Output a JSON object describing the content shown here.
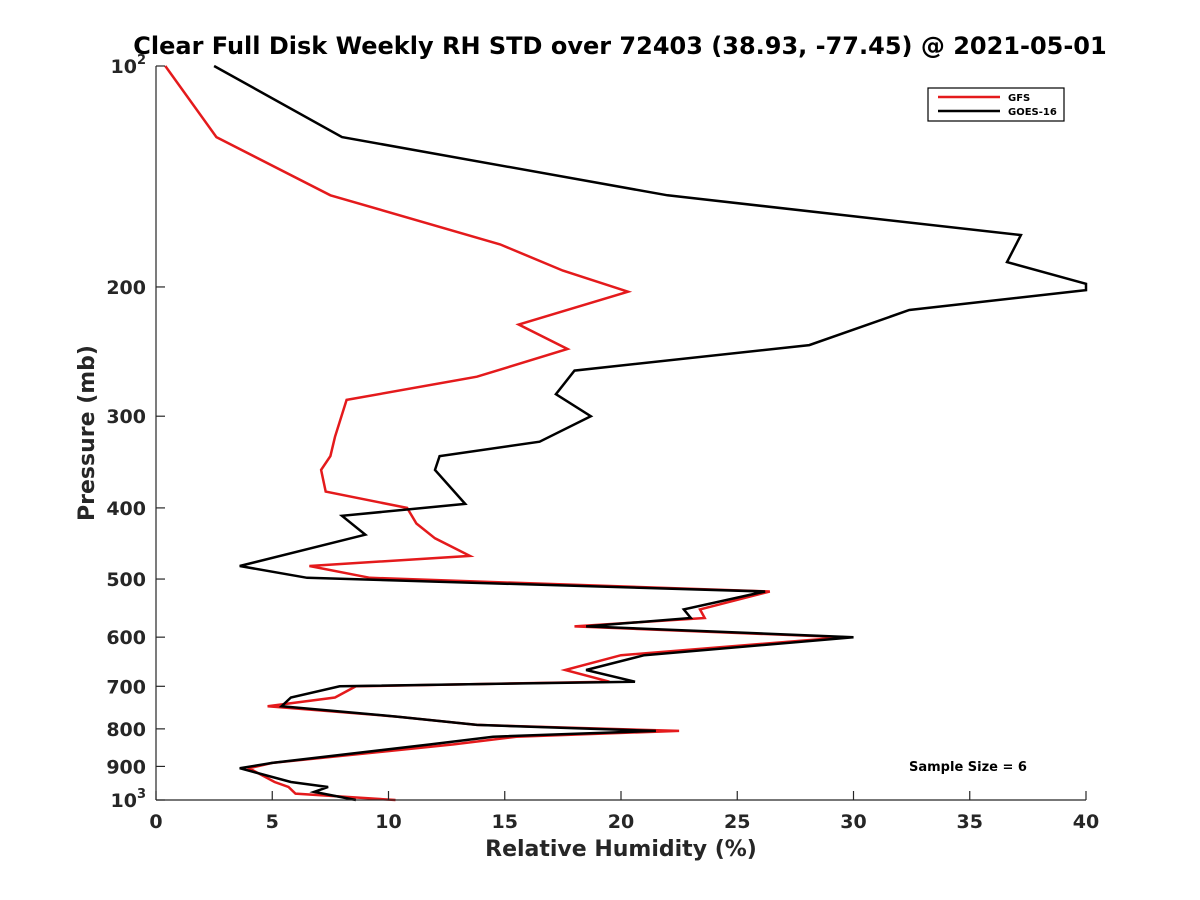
{
  "chart_data": {
    "type": "line",
    "title": "Clear Full Disk Weekly RH STD over 72403 (38.93, -77.45) @ 2021-05-01",
    "xlabel": "Relative Humidity (%)",
    "ylabel": "Pressure (mb)",
    "xlim": [
      0,
      40
    ],
    "ylim": [
      100,
      1000
    ],
    "y_scale": "log",
    "y_reversed": true,
    "x_ticks": [
      "0",
      "5",
      "10",
      "15",
      "20",
      "25",
      "30",
      "35",
      "40"
    ],
    "y_tick_values": [
      100,
      200,
      300,
      400,
      500,
      600,
      700,
      800,
      900,
      1000
    ],
    "y_tick_labels": [
      {
        "base": "10",
        "exp": "2"
      },
      {
        "base": "200",
        "exp": ""
      },
      {
        "base": "300",
        "exp": ""
      },
      {
        "base": "400",
        "exp": ""
      },
      {
        "base": "500",
        "exp": ""
      },
      {
        "base": "600",
        "exp": ""
      },
      {
        "base": "700",
        "exp": ""
      },
      {
        "base": "800",
        "exp": ""
      },
      {
        "base": "900",
        "exp": ""
      },
      {
        "base": "10",
        "exp": "3"
      }
    ],
    "legend_position": "top-right",
    "annotation": "Sample Size = 6",
    "series": [
      {
        "name": "GFS",
        "color": "#e41a1c",
        "points": [
          [
            0.4,
            100
          ],
          [
            2.6,
            125
          ],
          [
            7.5,
            150
          ],
          [
            14.8,
            175
          ],
          [
            17.5,
            190
          ],
          [
            20.3,
            203
          ],
          [
            15.6,
            225
          ],
          [
            17.7,
            243
          ],
          [
            13.8,
            265
          ],
          [
            8.2,
            285
          ],
          [
            7.7,
            320
          ],
          [
            7.5,
            340
          ],
          [
            7.1,
            355
          ],
          [
            7.3,
            380
          ],
          [
            10.8,
            400
          ],
          [
            11.2,
            420
          ],
          [
            12.0,
            440
          ],
          [
            13.5,
            465
          ],
          [
            6.6,
            480
          ],
          [
            9.2,
            498
          ],
          [
            26.4,
            520
          ],
          [
            23.4,
            550
          ],
          [
            23.6,
            565
          ],
          [
            18.0,
            580
          ],
          [
            29.6,
            600
          ],
          [
            20.0,
            635
          ],
          [
            17.6,
            665
          ],
          [
            19.5,
            690
          ],
          [
            8.6,
            700
          ],
          [
            7.7,
            725
          ],
          [
            4.8,
            745
          ],
          [
            10.4,
            770
          ],
          [
            13.8,
            790
          ],
          [
            22.5,
            805
          ],
          [
            15.5,
            820
          ],
          [
            12.8,
            840
          ],
          [
            5.0,
            890
          ],
          [
            4.0,
            905
          ],
          [
            5.1,
            945
          ],
          [
            5.7,
            960
          ],
          [
            6.0,
            980
          ],
          [
            10.3,
            1000
          ]
        ]
      },
      {
        "name": "GOES-16",
        "color": "#000000",
        "points": [
          [
            2.5,
            100
          ],
          [
            8.0,
            125
          ],
          [
            22.0,
            150
          ],
          [
            37.2,
            170
          ],
          [
            36.6,
            185
          ],
          [
            40.0,
            198
          ],
          [
            40.0,
            202
          ],
          [
            32.4,
            215
          ],
          [
            28.1,
            240
          ],
          [
            18.0,
            260
          ],
          [
            17.2,
            280
          ],
          [
            18.7,
            300
          ],
          [
            16.5,
            325
          ],
          [
            12.2,
            340
          ],
          [
            12.0,
            355
          ],
          [
            13.3,
            395
          ],
          [
            8.0,
            410
          ],
          [
            9.0,
            435
          ],
          [
            3.6,
            480
          ],
          [
            6.5,
            498
          ],
          [
            26.2,
            520
          ],
          [
            22.7,
            550
          ],
          [
            23.0,
            565
          ],
          [
            18.5,
            580
          ],
          [
            30.0,
            600
          ],
          [
            21.0,
            635
          ],
          [
            18.5,
            665
          ],
          [
            20.6,
            690
          ],
          [
            7.9,
            700
          ],
          [
            5.8,
            725
          ],
          [
            5.4,
            745
          ],
          [
            10.4,
            770
          ],
          [
            13.8,
            790
          ],
          [
            21.5,
            805
          ],
          [
            14.5,
            820
          ],
          [
            11.8,
            840
          ],
          [
            5.0,
            890
          ],
          [
            3.6,
            905
          ],
          [
            5.8,
            945
          ],
          [
            7.4,
            960
          ],
          [
            6.8,
            975
          ],
          [
            8.6,
            1000
          ]
        ]
      }
    ]
  }
}
